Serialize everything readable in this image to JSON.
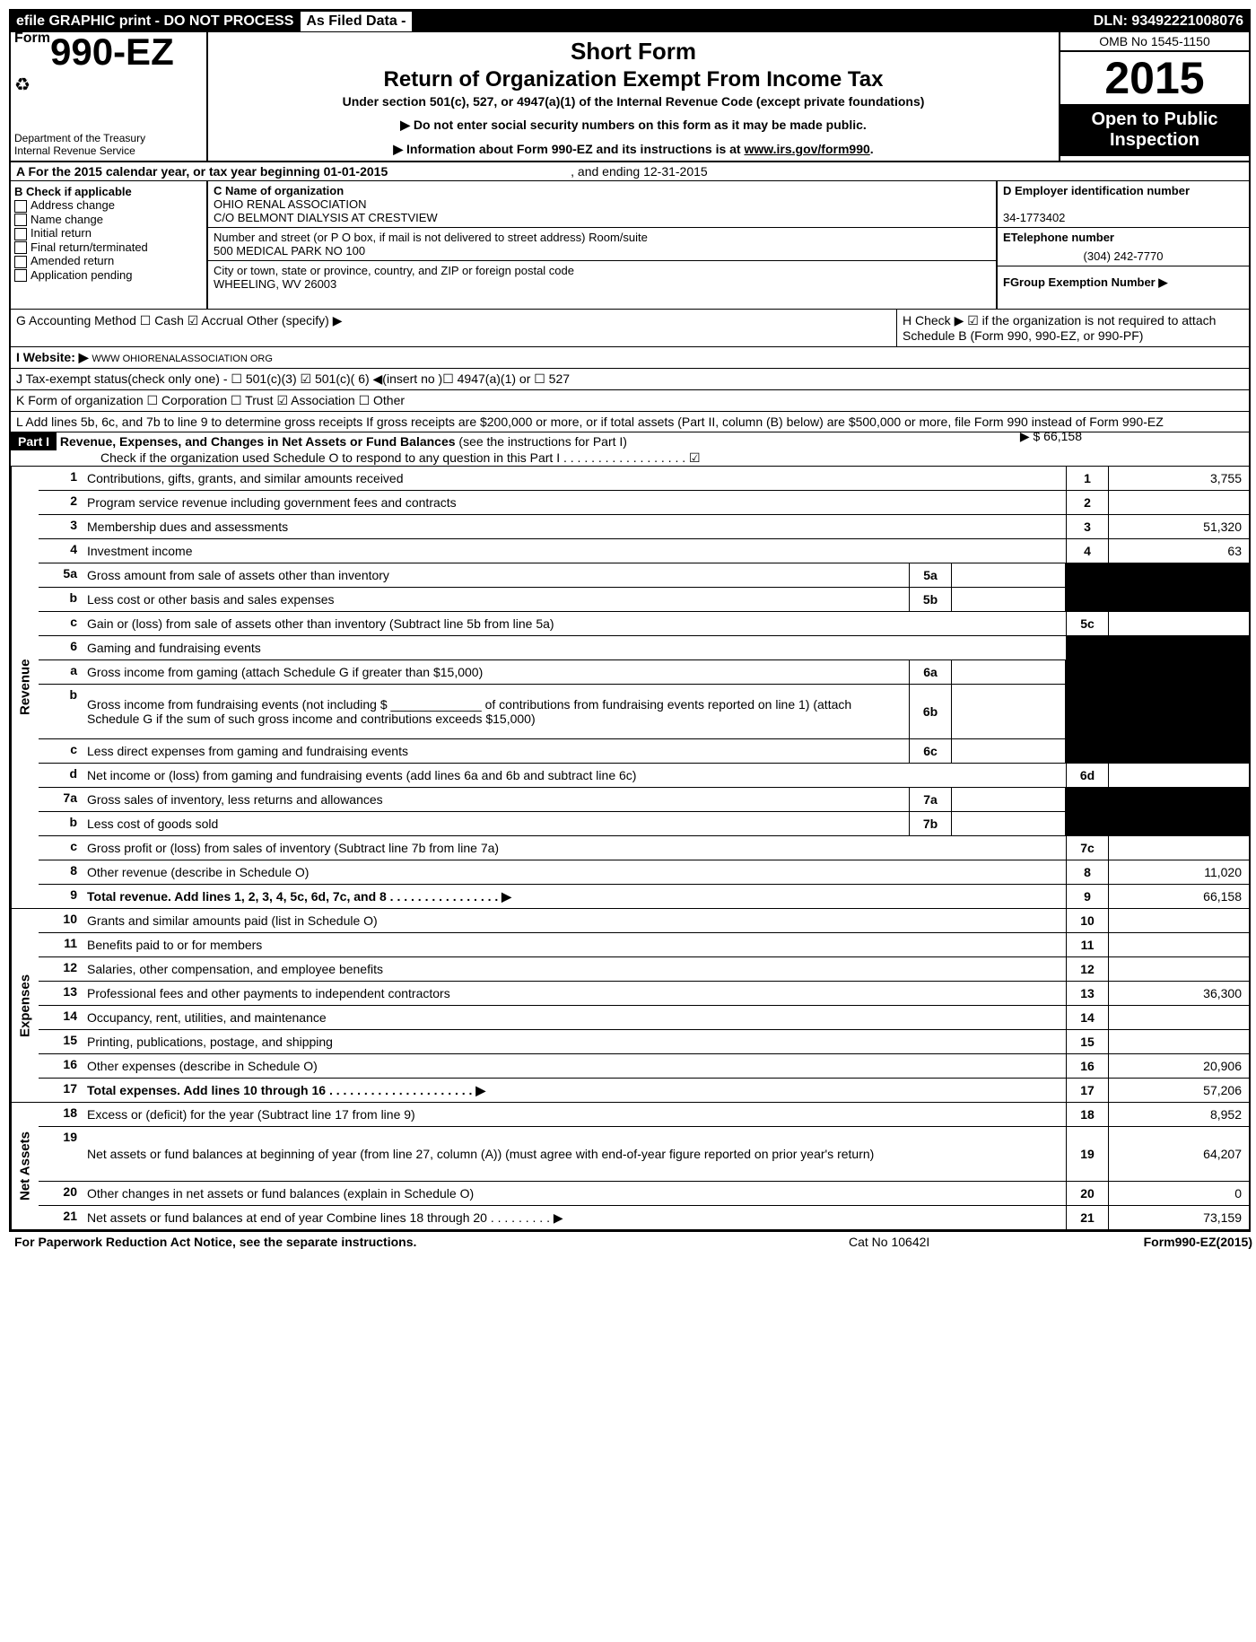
{
  "topbar": {
    "efile": "efile GRAPHIC print - DO NOT PROCESS",
    "asfiled": "As Filed Data -",
    "dln": "DLN: 93492221008076"
  },
  "header": {
    "form_prefix": "Form",
    "form_number": "990-EZ",
    "dept1": "Department of the Treasury",
    "dept2": "Internal Revenue Service",
    "title1": "Short Form",
    "title2": "Return of Organization Exempt From Income Tax",
    "subtitle": "Under section 501(c), 527, or 4947(a)(1) of the Internal Revenue Code (except private foundations)",
    "notice1": "▶ Do not enter social security numbers on this form as it may be made public.",
    "notice2": "▶ Information about Form 990-EZ and its instructions is at ",
    "notice2_link": "www.irs.gov/form990",
    "notice2_suffix": ".",
    "omb": "OMB No 1545-1150",
    "year": "2015",
    "open": "Open to Public Inspection"
  },
  "rowA": {
    "label": "A  For the 2015 calendar year, or tax year beginning 01-01-2015",
    "ending": ", and ending 12-31-2015"
  },
  "colB": {
    "header": "B  Check if applicable",
    "items": [
      "Address change",
      "Name change",
      "Initial return",
      "Final return/terminated",
      "Amended return",
      "Application pending"
    ]
  },
  "colC": {
    "name_label": "C Name of organization",
    "name": "OHIO RENAL ASSOCIATION",
    "care_of": "C/O BELMONT DIALYSIS AT CRESTVIEW",
    "street_label": "Number and street (or P  O  box, if mail is not delivered to street address) Room/suite",
    "street": "500 MEDICAL PARK NO 100",
    "city_label": "City or town, state or province, country, and ZIP or foreign postal code",
    "city": "WHEELING, WV  26003"
  },
  "colD": {
    "ein_label": "D Employer identification number",
    "ein": "34-1773402",
    "phone_label": "ETelephone number",
    "phone": "(304) 242-7770",
    "group_label": "FGroup Exemption Number   ▶"
  },
  "rowG": {
    "text": "G Accounting Method   ☐ Cash  ☑ Accrual   Other (specify) ▶",
    "h_text": "H   Check ▶ ☑ if the organization is not required to attach Schedule B (Form 990, 990-EZ, or 990-PF)"
  },
  "rowI": {
    "label": "I Website: ▶",
    "value": "WWW OHIORENALASSOCIATION ORG"
  },
  "rowJ": "J Tax-exempt status(check only one) - ☐ 501(c)(3) ☑ 501(c)( 6) ◀(insert no )☐ 4947(a)(1) or ☐ 527",
  "rowK": "K Form of organization   ☐ Corporation  ☐ Trust  ☑ Association  ☐ Other",
  "rowL": {
    "text": "L Add lines 5b, 6c, and 7b to line 9 to determine gross receipts  If gross receipts are $200,000 or more, or if total assets (Part II, column (B) below) are $500,000 or more, file Form 990 instead of Form 990-EZ",
    "amount": "▶ $ 66,158"
  },
  "part1": {
    "header": "Part I",
    "title": "Revenue, Expenses, and Changes in Net Assets or Fund Balances",
    "title_suffix": " (see the instructions for Part I)",
    "check_line": "Check if the organization used Schedule O to respond to any question in this Part I  .  .  .  .  .  .  .  .  .  .  .  .  .  .  .  .  .  .  ☑"
  },
  "sections": {
    "revenue": "Revenue",
    "expenses": "Expenses",
    "netassets": "Net Assets"
  },
  "lines": [
    {
      "n": "1",
      "d": "Contributions, gifts, grants, and similar amounts received",
      "en": "1",
      "ev": "3,755"
    },
    {
      "n": "2",
      "d": "Program service revenue including government fees and contracts",
      "en": "2",
      "ev": ""
    },
    {
      "n": "3",
      "d": "Membership dues and assessments",
      "en": "3",
      "ev": "51,320"
    },
    {
      "n": "4",
      "d": "Investment income",
      "en": "4",
      "ev": "63"
    },
    {
      "n": "5a",
      "d": "Gross amount from sale of assets other than inventory",
      "mn": "5a",
      "mv": "",
      "shaded": true
    },
    {
      "n": "b",
      "d": "Less  cost or other basis and sales expenses",
      "mn": "5b",
      "mv": "",
      "shaded": true
    },
    {
      "n": "c",
      "d": "Gain or (loss) from sale of assets other than inventory (Subtract line 5b from line 5a)",
      "en": "5c",
      "ev": ""
    },
    {
      "n": "6",
      "d": "Gaming and fundraising events",
      "shaded": true,
      "noval": true
    },
    {
      "n": "a",
      "d": "Gross income from gaming (attach Schedule G if greater than $15,000)",
      "mn": "6a",
      "mv": "",
      "shaded": true
    },
    {
      "n": "b",
      "d": "Gross income from fundraising events (not including $ _____________ of contributions from fundraising events reported on line 1) (attach Schedule G if the sum of such gross income and contributions exceeds $15,000)",
      "mn": "6b",
      "mv": "",
      "shaded": true,
      "tall": true
    },
    {
      "n": "c",
      "d": "Less  direct expenses from gaming and fundraising events",
      "mn": "6c",
      "mv": "",
      "shaded": true
    },
    {
      "n": "d",
      "d": "Net income or (loss) from gaming and fundraising events (add lines 6a and 6b and subtract line 6c)",
      "en": "6d",
      "ev": ""
    },
    {
      "n": "7a",
      "d": "Gross sales of inventory, less returns and allowances",
      "mn": "7a",
      "mv": "",
      "shaded": true
    },
    {
      "n": "b",
      "d": "Less  cost of goods sold",
      "mn": "7b",
      "mv": "",
      "shaded": true
    },
    {
      "n": "c",
      "d": "Gross profit or (loss) from sales of inventory (Subtract line 7b from line 7a)",
      "en": "7c",
      "ev": ""
    },
    {
      "n": "8",
      "d": "Other revenue (describe in Schedule O)",
      "en": "8",
      "ev": "11,020"
    },
    {
      "n": "9",
      "d": "Total revenue. Add lines 1, 2, 3, 4, 5c, 6d, 7c, and 8     .  .  .  .  .  .  .  .  .  .  .  .  .  .  .  .  ▶",
      "en": "9",
      "ev": "66,158",
      "bold": true
    }
  ],
  "exp_lines": [
    {
      "n": "10",
      "d": "Grants and similar amounts paid (list in Schedule O)",
      "en": "10",
      "ev": ""
    },
    {
      "n": "11",
      "d": "Benefits paid to or for members",
      "en": "11",
      "ev": ""
    },
    {
      "n": "12",
      "d": "Salaries, other compensation, and employee benefits",
      "en": "12",
      "ev": ""
    },
    {
      "n": "13",
      "d": "Professional fees and other payments to independent contractors",
      "en": "13",
      "ev": "36,300"
    },
    {
      "n": "14",
      "d": "Occupancy, rent, utilities, and maintenance",
      "en": "14",
      "ev": ""
    },
    {
      "n": "15",
      "d": "Printing, publications, postage, and shipping",
      "en": "15",
      "ev": ""
    },
    {
      "n": "16",
      "d": "Other expenses (describe in Schedule O)",
      "en": "16",
      "ev": "20,906"
    },
    {
      "n": "17",
      "d": "Total expenses. Add lines 10 through 16     .  .  .  .  .  .  .  .  .  .  .  .  .  .  .  .  .  .  .  .  .  ▶",
      "en": "17",
      "ev": "57,206",
      "bold": true
    }
  ],
  "net_lines": [
    {
      "n": "18",
      "d": "Excess or (deficit) for the year (Subtract line 17 from line 9)",
      "en": "18",
      "ev": "8,952"
    },
    {
      "n": "19",
      "d": "Net assets or fund balances at beginning of year (from line 27, column (A)) (must agree with end-of-year figure reported on prior year's return)",
      "en": "19",
      "ev": "64,207",
      "tall": true,
      "shaded_top": true
    },
    {
      "n": "20",
      "d": "Other changes in net assets or fund balances (explain in Schedule O)",
      "en": "20",
      "ev": "0"
    },
    {
      "n": "21",
      "d": "Net assets or fund balances at end of year  Combine lines 18 through 20    .  .  .  .  .  .  .  .  .  ▶",
      "en": "21",
      "ev": "73,159"
    }
  ],
  "footer": {
    "left": "For Paperwork Reduction Act Notice, see the separate instructions.",
    "mid": "Cat No  10642I",
    "right": "Form 990-EZ (2015)"
  }
}
